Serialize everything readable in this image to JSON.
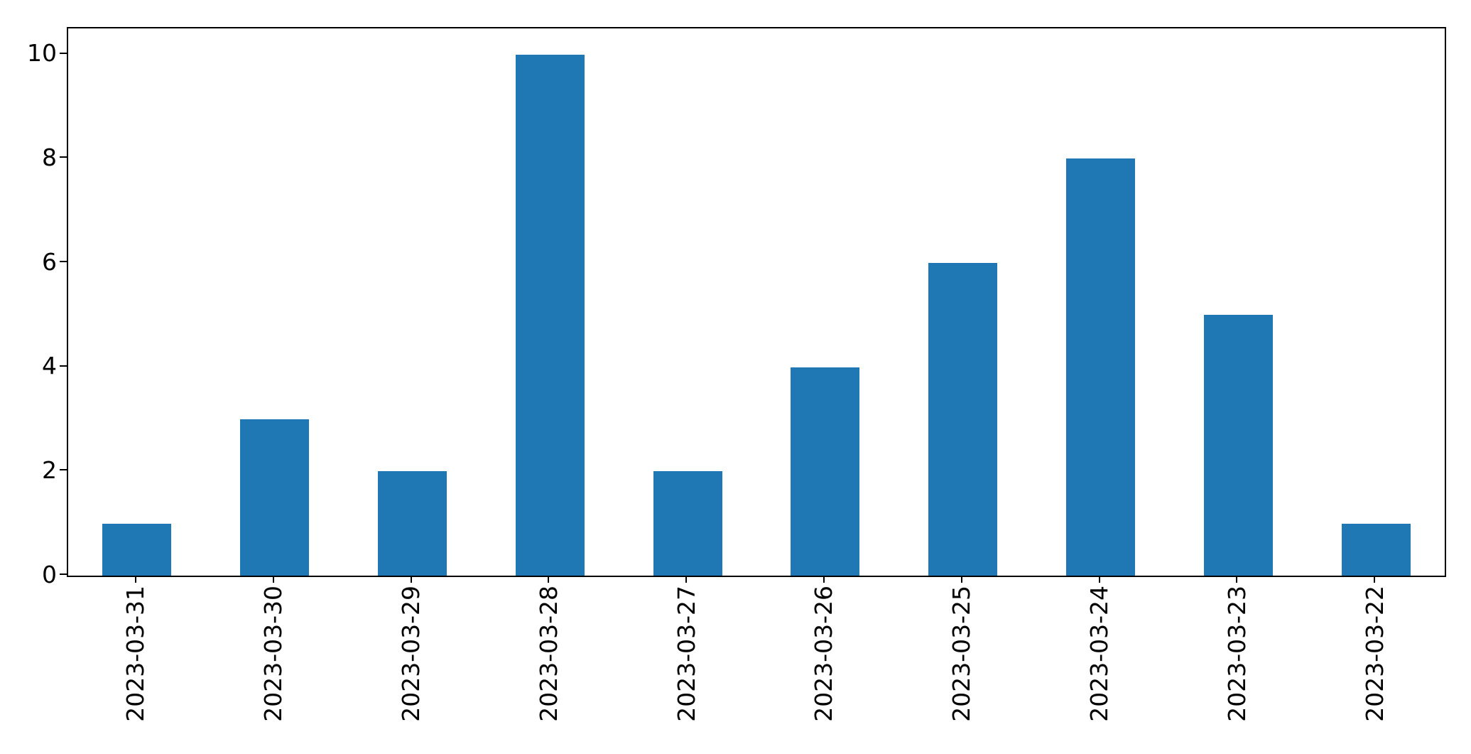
{
  "chart_data": {
    "type": "bar",
    "categories": [
      "2023-03-31",
      "2023-03-30",
      "2023-03-29",
      "2023-03-28",
      "2023-03-27",
      "2023-03-26",
      "2023-03-25",
      "2023-03-24",
      "2023-03-23",
      "2023-03-22"
    ],
    "values": [
      1,
      3,
      2,
      10,
      2,
      4,
      6,
      8,
      5,
      1
    ],
    "title": "",
    "xlabel": "",
    "ylabel": "",
    "ylim": [
      0,
      10.5
    ],
    "yticks": [
      0,
      2,
      4,
      6,
      8,
      10
    ],
    "bar_width_fraction": 0.5,
    "x_tick_rotation_deg": 90,
    "grid": false,
    "legend_visible": false
  },
  "figure": {
    "background_color": "#ffffff",
    "bar_color": "#1f77b4",
    "spine_color": "#000000",
    "tick_color": "#000000",
    "tick_label_color": "#000000"
  }
}
